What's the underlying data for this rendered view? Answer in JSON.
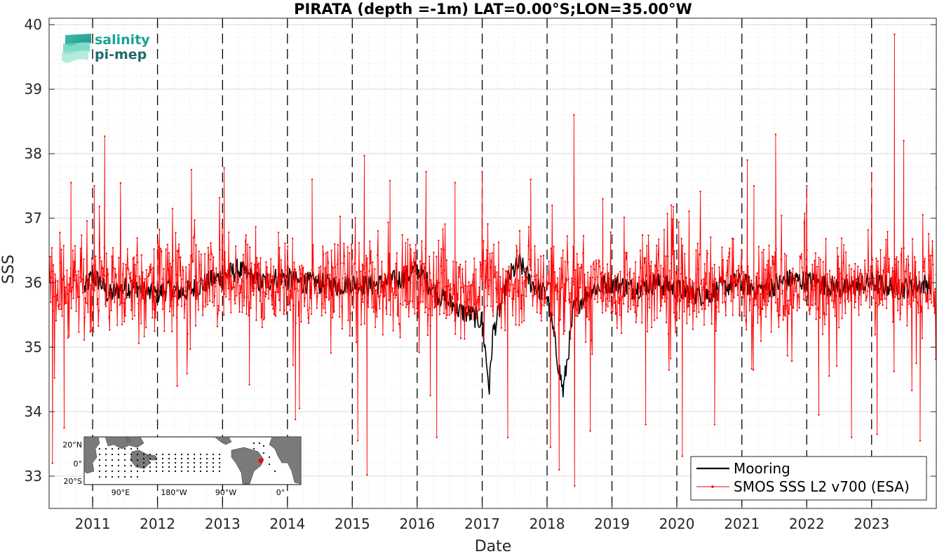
{
  "chart_data": {
    "type": "line",
    "title": "PIRATA (depth =-1m) LAT=0.00°S;LON=35.00°W",
    "xlabel": "Date",
    "ylabel": "SSS",
    "xlim": [
      "2010-05-01",
      "2023-12-31"
    ],
    "ylim": [
      32.5,
      40.1
    ],
    "x_ticks": [
      "2011",
      "2012",
      "2013",
      "2014",
      "2015",
      "2016",
      "2017",
      "2018",
      "2019",
      "2020",
      "2021",
      "2022",
      "2023"
    ],
    "y_ticks": [
      "33",
      "34",
      "35",
      "36",
      "37",
      "38",
      "39",
      "40"
    ],
    "grid": "dotted minor grid on",
    "legend_position": "bottom-right",
    "year_separators": "dashed vertical lines at each Jan 1",
    "series": [
      {
        "name": "Mooring",
        "color": "#000000",
        "style": "solid line, gappy",
        "points": [
          {
            "x": "2010-11-15",
            "y": 35.9
          },
          {
            "x": "2011-01-01",
            "y": 36.1
          },
          {
            "x": "2011-02-15",
            "y": 36.0
          },
          {
            "x": "2011-04-01",
            "y": 35.8
          },
          {
            "x": "2011-06-01",
            "y": 35.9
          },
          {
            "x": "2011-09-01",
            "y": 35.95
          },
          {
            "x": "2011-12-01",
            "y": 35.8
          },
          {
            "x": "2012-03-01",
            "y": 35.9
          },
          {
            "x": "2012-06-01",
            "y": 35.85
          },
          {
            "x": "2012-10-01",
            "y": 36.0
          },
          {
            "x": "2013-01-01",
            "y": 36.1
          },
          {
            "x": "2013-04-01",
            "y": 36.2
          },
          {
            "x": "2013-08-01",
            "y": 36.0
          },
          {
            "x": "2013-12-01",
            "y": 36.1
          },
          {
            "x": "2014-03-01",
            "y": 36.0
          },
          {
            "x": "2014-06-01",
            "y": 36.0
          },
          {
            "x": "2014-10-01",
            "y": 35.95
          },
          {
            "x": "2015-01-01",
            "y": 36.0
          },
          {
            "x": "2015-04-01",
            "y": 35.95
          },
          {
            "x": "2015-08-01",
            "y": 36.0
          },
          {
            "x": "2015-11-01",
            "y": 36.1
          },
          {
            "x": "2016-01-01",
            "y": 36.2
          },
          {
            "x": "2016-03-01",
            "y": 36.0
          },
          {
            "x": "2016-05-01",
            "y": 35.8
          },
          {
            "x": "2016-07-01",
            "y": 35.7
          },
          {
            "x": "2016-09-01",
            "y": 35.55
          },
          {
            "x": "2016-11-01",
            "y": 35.5
          },
          {
            "x": "2017-01-01",
            "y": 35.4
          },
          {
            "x": "2017-02-10",
            "y": 34.35
          },
          {
            "x": "2017-03-01",
            "y": 35.2
          },
          {
            "x": "2017-04-01",
            "y": 35.5
          },
          {
            "x": "2017-06-01",
            "y": 36.1
          },
          {
            "x": "2017-08-01",
            "y": 36.3
          },
          {
            "x": "2017-10-01",
            "y": 36.0
          },
          {
            "x": "2018-01-01",
            "y": 35.8
          },
          {
            "x": "2018-04-01",
            "y": 34.3
          },
          {
            "x": "2018-06-01",
            "y": 35.6
          },
          {
            "x": "2018-09-01",
            "y": 35.9
          },
          {
            "x": "2019-01-01",
            "y": 36.0
          },
          {
            "x": "2019-05-01",
            "y": 35.9
          },
          {
            "x": "2019-09-01",
            "y": 36.0
          },
          {
            "x": "2020-01-01",
            "y": 35.9
          },
          {
            "x": "2020-06-01",
            "y": 35.8
          },
          {
            "x": "2020-12-01",
            "y": 36.0
          },
          {
            "x": "2021-05-01",
            "y": 35.9
          },
          {
            "x": "2021-10-01",
            "y": 36.05
          },
          {
            "x": "2022-03-01",
            "y": 36.0
          },
          {
            "x": "2022-08-01",
            "y": 35.9
          },
          {
            "x": "2023-01-01",
            "y": 36.0
          },
          {
            "x": "2023-06-01",
            "y": 35.9
          },
          {
            "x": "2023-12-01",
            "y": 36.0
          }
        ]
      },
      {
        "name": "SMOS SSS L2 v700 (ESA)",
        "color": "#ff0000",
        "style": "line with small point markers, high-frequency noisy",
        "baseline": 35.95,
        "noise_amplitude": 0.5,
        "samples_per_year": 120,
        "spikes": [
          {
            "x": "2010-05-20",
            "y": 33.2
          },
          {
            "x": "2010-07-25",
            "y": 33.75
          },
          {
            "x": "2010-09-01",
            "y": 37.55
          },
          {
            "x": "2011-01-10",
            "y": 37.5
          },
          {
            "x": "2011-03-10",
            "y": 38.27
          },
          {
            "x": "2012-04-20",
            "y": 34.4
          },
          {
            "x": "2012-07-10",
            "y": 37.75
          },
          {
            "x": "2013-01-10",
            "y": 37.78
          },
          {
            "x": "2013-06-01",
            "y": 34.42
          },
          {
            "x": "2014-02-15",
            "y": 33.88
          },
          {
            "x": "2014-03-10",
            "y": 34.05
          },
          {
            "x": "2014-05-20",
            "y": 37.6
          },
          {
            "x": "2015-02-01",
            "y": 33.55
          },
          {
            "x": "2015-03-10",
            "y": 37.97
          },
          {
            "x": "2015-03-25",
            "y": 33.02
          },
          {
            "x": "2015-08-01",
            "y": 37.58
          },
          {
            "x": "2016-02-20",
            "y": 37.72
          },
          {
            "x": "2016-03-15",
            "y": 34.25
          },
          {
            "x": "2016-04-20",
            "y": 33.6
          },
          {
            "x": "2016-08-01",
            "y": 37.55
          },
          {
            "x": "2017-01-01",
            "y": 37.72
          },
          {
            "x": "2017-05-25",
            "y": 33.6
          },
          {
            "x": "2017-10-01",
            "y": 37.6
          },
          {
            "x": "2018-01-20",
            "y": 33.45
          },
          {
            "x": "2018-03-10",
            "y": 33.1
          },
          {
            "x": "2018-06-01",
            "y": 38.6
          },
          {
            "x": "2018-06-05",
            "y": 32.85
          },
          {
            "x": "2018-09-01",
            "y": 33.7
          },
          {
            "x": "2018-11-10",
            "y": 37.3
          },
          {
            "x": "2019-07-10",
            "y": 33.8
          },
          {
            "x": "2019-12-01",
            "y": 37.2
          },
          {
            "x": "2020-02-01",
            "y": 33.31
          },
          {
            "x": "2020-08-01",
            "y": 33.8
          },
          {
            "x": "2021-02-01",
            "y": 37.9
          },
          {
            "x": "2021-03-10",
            "y": 37.5
          },
          {
            "x": "2021-07-10",
            "y": 38.3
          },
          {
            "x": "2022-01-01",
            "y": 37.5
          },
          {
            "x": "2022-03-10",
            "y": 33.95
          },
          {
            "x": "2022-09-10",
            "y": 33.6
          },
          {
            "x": "2023-01-01",
            "y": 37.7
          },
          {
            "x": "2023-02-01",
            "y": 33.65
          },
          {
            "x": "2023-05-10",
            "y": 39.85
          },
          {
            "x": "2023-07-01",
            "y": 38.2
          },
          {
            "x": "2023-10-01",
            "y": 33.55
          },
          {
            "x": "2023-12-31",
            "y": 37.46
          }
        ]
      }
    ],
    "inset_map": {
      "lat_labels": [
        "20°N",
        "0°",
        "20°S"
      ],
      "lon_labels": [
        "90°E",
        "180°W",
        "90°W",
        "0°"
      ],
      "highlight_color": "#ff0000"
    }
  },
  "logo": {
    "line1": "salinity",
    "line2": "pi-mep",
    "line1_color": "#1aa39a",
    "line2_color": "#1f6b6b"
  }
}
